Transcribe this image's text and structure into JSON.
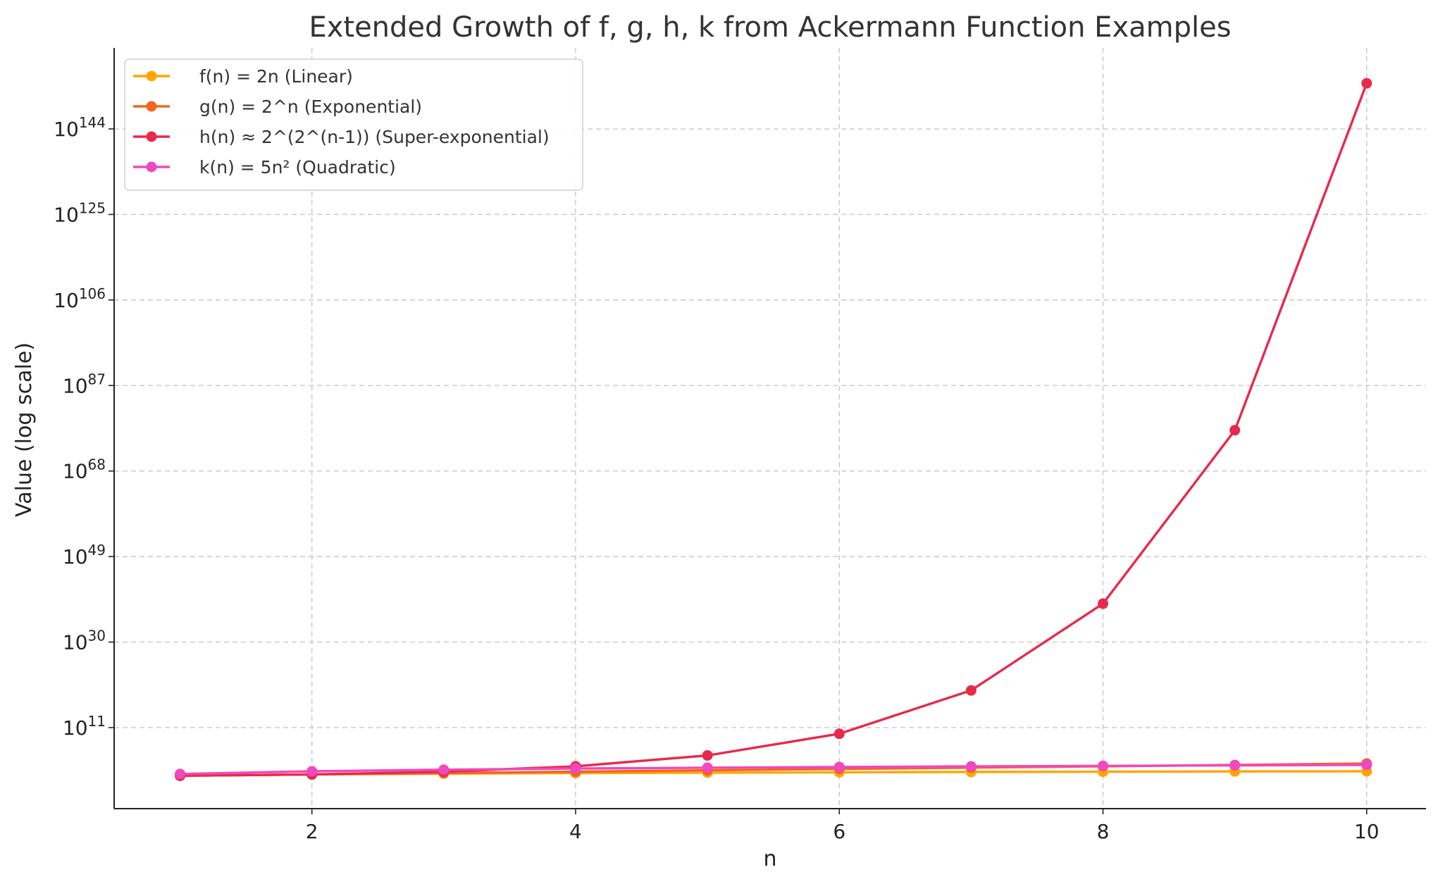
{
  "chart_data": {
    "type": "line",
    "title": "Extended Growth of f, g, h, k from Ackermann Function Examples",
    "xlabel": "n",
    "ylabel": "Value (log scale)",
    "yscale": "log",
    "xlim": [
      0.5,
      10.45
    ],
    "ylim_log10": [
      -7,
      162
    ],
    "x_ticks": [
      2,
      4,
      6,
      8,
      10
    ],
    "y_tick_exponents": [
      11,
      30,
      49,
      68,
      87,
      106,
      125,
      144
    ],
    "grid": true,
    "legend_position": "upper-left",
    "x": [
      1,
      2,
      3,
      4,
      5,
      6,
      7,
      8,
      9,
      10
    ],
    "series": [
      {
        "name": "f(n) = 2n (Linear)",
        "color": "#FFA500",
        "values": [
          2,
          4,
          6,
          8,
          10,
          12,
          14,
          16,
          18,
          20
        ]
      },
      {
        "name": "g(n) = 2^n (Exponential)",
        "color": "#F26522",
        "values": [
          2,
          4,
          8,
          16,
          32,
          64,
          128,
          256,
          512,
          1024
        ]
      },
      {
        "name": "h(n) ≈ 2^(2^(n-1)) (Super-exponential)",
        "color": "#E8294C",
        "values": [
          2,
          4,
          16,
          256,
          65536,
          4294967296.0,
          1.8446744073709552e+19,
          3.402823669209385e+38,
          1.157920892373162e+77,
          1.3407807929942597e+154
        ]
      },
      {
        "name": "k(n) = 5n² (Quadratic)",
        "color": "#F048C0",
        "values": [
          5,
          20,
          45,
          80,
          125,
          180,
          245,
          320,
          405,
          500
        ]
      }
    ]
  }
}
